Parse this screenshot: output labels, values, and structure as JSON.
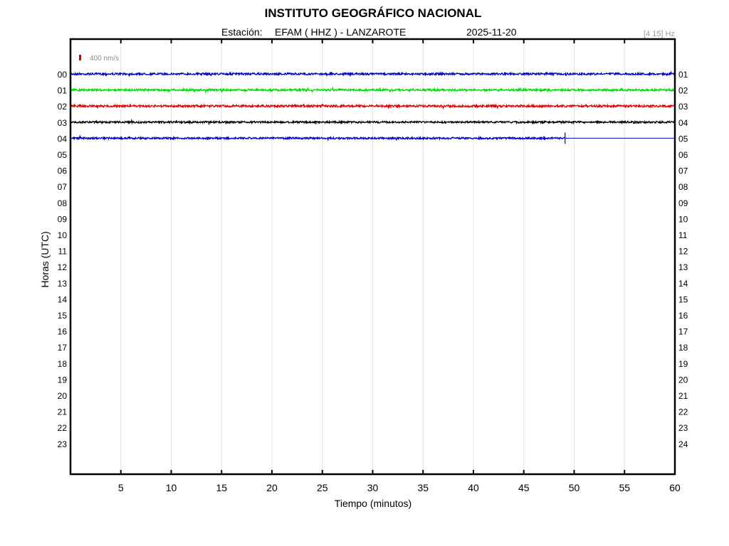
{
  "header": {
    "title": "INSTITUTO GEOGRÁFICO NACIONAL",
    "station_label": "Estación:",
    "station": "EFAM ( HHZ ) - LANZAROTE",
    "date": "2025-11-20",
    "filter": "[4 15] Hz"
  },
  "scale_label": "400 nm/s",
  "colors": {
    "scale_marker": "#dd0000",
    "trace_cycle": [
      "#0000bb",
      "#00dd00",
      "#dd0000",
      "#000000"
    ],
    "grid": "#e4e4e4",
    "axis": "#000000"
  },
  "chart_data": {
    "type": "line",
    "subtype": "helicorder",
    "title": "INSTITUTO GEOGRÁFICO NACIONAL",
    "xlabel": "Tiempo (minutos)",
    "ylabel": "Horas (UTC)",
    "xlim": [
      0,
      60
    ],
    "x_ticks": [
      "5",
      "10",
      "15",
      "20",
      "25",
      "30",
      "35",
      "40",
      "45",
      "50",
      "55",
      "60"
    ],
    "x_tick_values": [
      5,
      10,
      15,
      20,
      25,
      30,
      35,
      40,
      45,
      50,
      55,
      60
    ],
    "left_hour_labels": [
      "00",
      "01",
      "02",
      "03",
      "04",
      "05",
      "06",
      "07",
      "08",
      "09",
      "10",
      "11",
      "12",
      "13",
      "14",
      "15",
      "16",
      "17",
      "18",
      "19",
      "20",
      "21",
      "22",
      "23"
    ],
    "right_hour_labels": [
      "01",
      "02",
      "03",
      "04",
      "05",
      "06",
      "07",
      "08",
      "09",
      "10",
      "11",
      "12",
      "13",
      "14",
      "15",
      "16",
      "17",
      "18",
      "19",
      "20",
      "21",
      "22",
      "23",
      "24"
    ],
    "grid": "vertical",
    "series": [
      {
        "hour": "00",
        "color": "#0000bb",
        "start_min": 0,
        "end_min": 60,
        "noise_amplitude": 0.35
      },
      {
        "hour": "01",
        "color": "#00dd00",
        "start_min": 0,
        "end_min": 60,
        "noise_amplitude": 0.4
      },
      {
        "hour": "02",
        "color": "#dd0000",
        "start_min": 0,
        "end_min": 60,
        "noise_amplitude": 0.4
      },
      {
        "hour": "03",
        "color": "#000000",
        "start_min": 0,
        "end_min": 60,
        "noise_amplitude": 0.3
      },
      {
        "hour": "04",
        "color": "#0000bb",
        "start_min": 0,
        "end_min": 49.1,
        "noise_amplitude": 0.3
      }
    ],
    "data_gap_line": {
      "hour": "04",
      "start_min": 49.1,
      "end_min": 60,
      "color": "#0000bb"
    },
    "data_end_marker_min": 49.1
  }
}
